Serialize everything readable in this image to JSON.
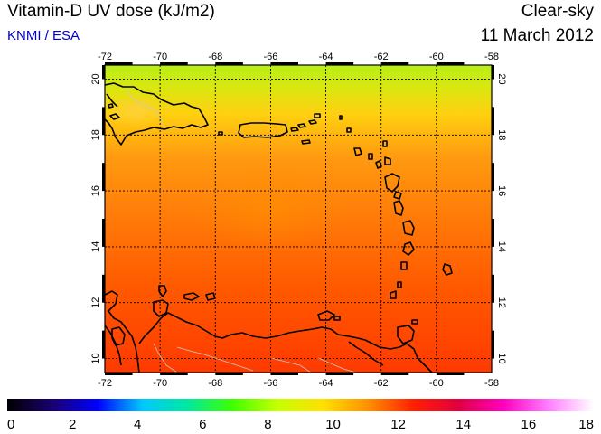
{
  "header": {
    "title": "Vitamin-D UV dose (kJ/m2)",
    "source": "KNMI / ESA",
    "mode": "Clear-sky",
    "date": "11 March 2012"
  },
  "map": {
    "lon_range": [
      -72,
      -58
    ],
    "lat_range": [
      9.5,
      20.5
    ],
    "lon_ticks": [
      "-72",
      "-70",
      "-68",
      "-66",
      "-64",
      "-62",
      "-60",
      "-58"
    ],
    "lat_ticks": [
      "20",
      "18",
      "16",
      "14",
      "12",
      "10"
    ],
    "grid": true,
    "coastline_color": "#000000",
    "border_color": "#c0c0c0",
    "field_colors": {
      "north": "#b8ee18",
      "mid": "#ff9a10",
      "south": "#ff3a00"
    }
  },
  "colorbar": {
    "min": 0,
    "max": 18,
    "tick_labels": [
      "0",
      "2",
      "4",
      "6",
      "8",
      "10",
      "12",
      "14",
      "16",
      "18"
    ],
    "colors": [
      "#000000",
      "#1a0070",
      "#0000ff",
      "#00c8ff",
      "#00e8a0",
      "#40ff00",
      "#c8ff00",
      "#ffe000",
      "#ff9000",
      "#ff2000",
      "#e00040",
      "#ff00c0",
      "#ff80ff",
      "#ffffff"
    ]
  }
}
